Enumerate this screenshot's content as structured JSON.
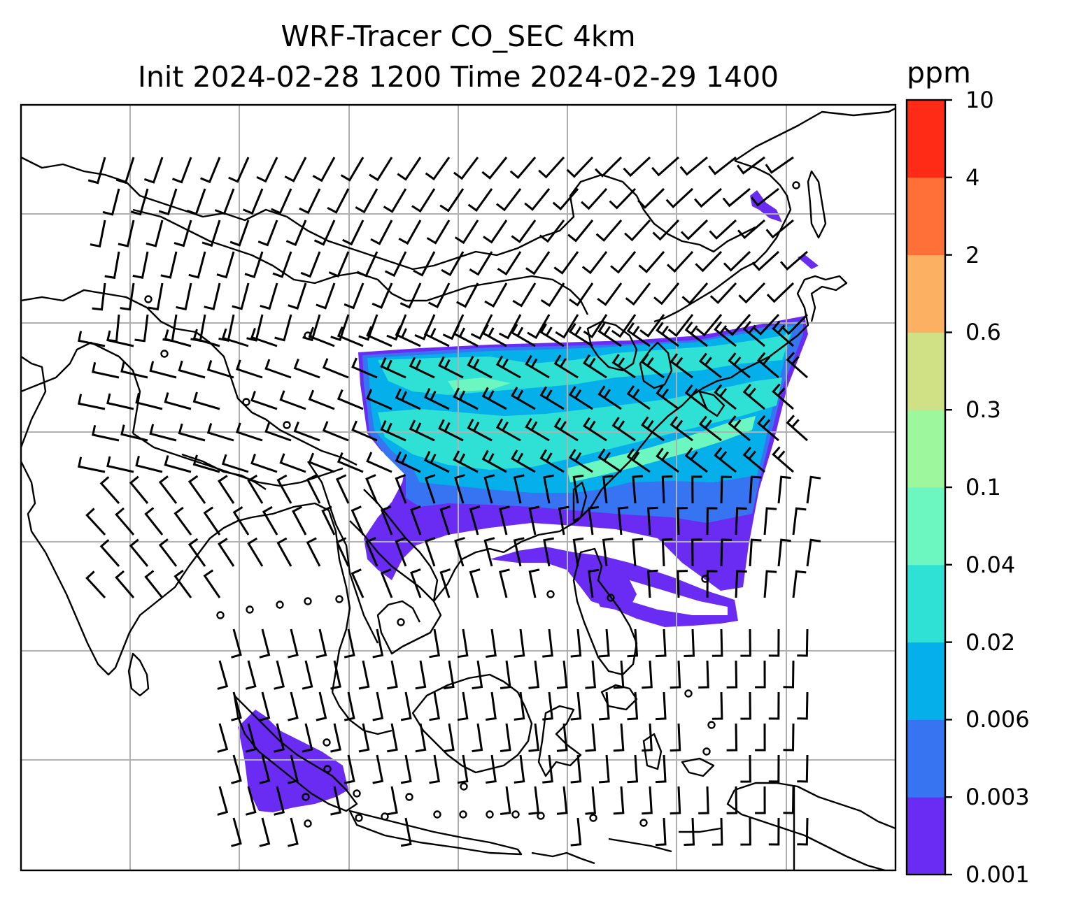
{
  "title_line1": "WRF-Tracer CO_SEC 4km",
  "title_line2": "Init 2024-02-28 1200 Time 2024-02-29 1400",
  "colorbar": {
    "units": "ppm",
    "levels": [
      "0.001",
      "0.003",
      "0.006",
      "0.02",
      "0.04",
      "0.1",
      "0.3",
      "0.6",
      "2",
      "4",
      "10"
    ],
    "colors": [
      "#6a2cf2",
      "#3674f2",
      "#05b0ea",
      "#2fe0d4",
      "#6cf7c0",
      "#9cf79d",
      "#d0e085",
      "#fbb062",
      "#ff7039",
      "#ff2b17"
    ]
  },
  "map": {
    "frame": "#000000",
    "gridline_color": "#b0b0b0",
    "coastline_color": "#000000",
    "wind_barb_color": "#000000"
  }
}
